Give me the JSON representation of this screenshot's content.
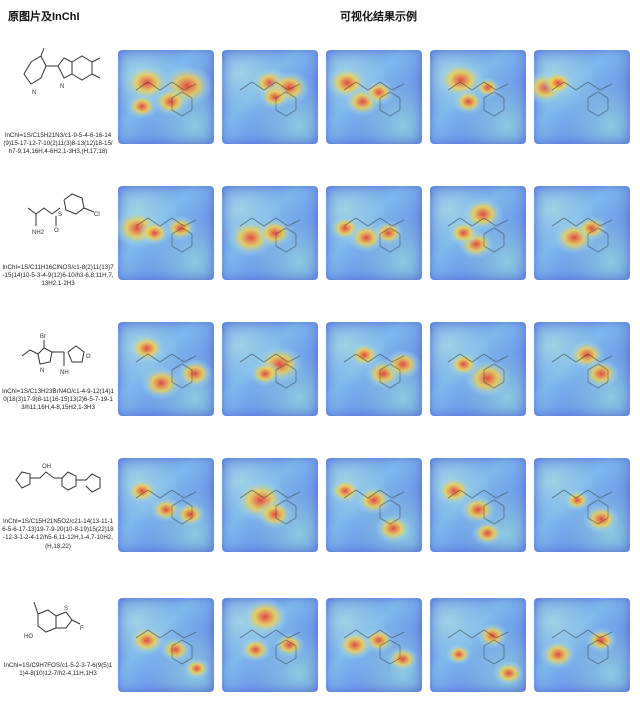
{
  "header": {
    "left_title": "原图片及InChI",
    "right_title": "可视化结果示例"
  },
  "rows": [
    {
      "inchi": "InChI=1S/C15H21N3/c1-9-5-4-6-16-14(9)15-17-12-7-10(2)11(3)8-13(12)18-15/h7-9,14,16H,4-6H2,1-3H3,(H,17,18)",
      "molecule": "methyl-piperidinyl dimethyl benzimidazole",
      "labels": [
        "N",
        "H",
        "N",
        "H"
      ]
    },
    {
      "inchi": "InChI=1S/C11H16ClNOS/c1-8(2)11(13)7-15(14)10-5-3-4-9(12)6-10/h3-6,8,11H,7,13H2,1-2H3",
      "molecule": "chlorophenyl sulfinyl amine",
      "labels": [
        "NH2",
        "S",
        "O",
        "Cl"
      ]
    },
    {
      "inchi": "InChI=1S/C13H23BrN4O/c1-4-9-12(14)10(18(3)17-9)8-11(16-15)13(2)6-5-7-19-13/h11,16H,4-8,15H2,1-3H3",
      "molecule": "bromo pyrazole oxolane hydrazine",
      "labels": [
        "Br",
        "N",
        "N",
        "O",
        "NH",
        "NH2"
      ]
    },
    {
      "inchi": "InChI=1S/C15H21N5O2/c21-14(13-11-16-5-6-17-13)19-7-9-20(10-8-19)15(22)18-12-3-1-2-4-12/h5-6,11-12H,1-4,7-10H2,(H,18,22)",
      "molecule": "cyclopentyl urea piperazine pyrazine",
      "labels": [
        "OH",
        "N",
        "N",
        "O",
        "N"
      ]
    },
    {
      "inchi": "InChI=1S/C9H7FOS/c1-5-2-3-7-6(9(5)11)4-8(10)12-7/h2-4,11H,1H3",
      "molecule": "fluoro benzothiophene ol",
      "labels": [
        "HO",
        "S",
        "F"
      ]
    }
  ],
  "colors": {
    "heat_low": "#5f87e6",
    "heat_mid": "#9fd3e6",
    "heat_high": "#e8413a",
    "heat_warm": "#f6d24a"
  },
  "hotspots": [
    [
      [
        [
          0.3,
          0.35,
          0.45
        ],
        [
          0.72,
          0.38,
          0.5
        ],
        [
          0.55,
          0.55,
          0.35
        ],
        [
          0.25,
          0.6,
          0.3
        ]
      ],
      [
        [
          0.5,
          0.35,
          0.35
        ],
        [
          0.7,
          0.4,
          0.4
        ],
        [
          0.55,
          0.5,
          0.3
        ]
      ],
      [
        [
          0.22,
          0.35,
          0.4
        ],
        [
          0.38,
          0.55,
          0.35
        ],
        [
          0.55,
          0.45,
          0.3
        ]
      ],
      [
        [
          0.32,
          0.32,
          0.45
        ],
        [
          0.4,
          0.55,
          0.3
        ],
        [
          0.6,
          0.4,
          0.25
        ]
      ],
      [
        [
          0.12,
          0.4,
          0.4
        ],
        [
          0.25,
          0.35,
          0.3
        ]
      ]
    ],
    [
      [
        [
          0.2,
          0.45,
          0.45
        ],
        [
          0.38,
          0.5,
          0.3
        ],
        [
          0.65,
          0.45,
          0.3
        ]
      ],
      [
        [
          0.3,
          0.55,
          0.45
        ],
        [
          0.55,
          0.5,
          0.35
        ]
      ],
      [
        [
          0.2,
          0.45,
          0.3
        ],
        [
          0.42,
          0.55,
          0.35
        ],
        [
          0.65,
          0.5,
          0.3
        ]
      ],
      [
        [
          0.55,
          0.3,
          0.4
        ],
        [
          0.48,
          0.62,
          0.35
        ],
        [
          0.35,
          0.5,
          0.3
        ]
      ],
      [
        [
          0.42,
          0.55,
          0.4
        ],
        [
          0.6,
          0.45,
          0.3
        ]
      ]
    ],
    [
      [
        [
          0.3,
          0.28,
          0.35
        ],
        [
          0.45,
          0.65,
          0.4
        ],
        [
          0.8,
          0.55,
          0.35
        ]
      ],
      [
        [
          0.6,
          0.45,
          0.45
        ],
        [
          0.45,
          0.55,
          0.3
        ]
      ],
      [
        [
          0.4,
          0.35,
          0.3
        ],
        [
          0.6,
          0.55,
          0.35
        ],
        [
          0.8,
          0.45,
          0.35
        ]
      ],
      [
        [
          0.6,
          0.6,
          0.45
        ],
        [
          0.35,
          0.45,
          0.3
        ]
      ],
      [
        [
          0.55,
          0.35,
          0.35
        ],
        [
          0.7,
          0.55,
          0.35
        ]
      ]
    ],
    [
      [
        [
          0.25,
          0.35,
          0.3
        ],
        [
          0.5,
          0.55,
          0.3
        ],
        [
          0.75,
          0.6,
          0.3
        ]
      ],
      [
        [
          0.4,
          0.45,
          0.5
        ],
        [
          0.55,
          0.6,
          0.35
        ]
      ],
      [
        [
          0.2,
          0.35,
          0.3
        ],
        [
          0.5,
          0.45,
          0.35
        ],
        [
          0.7,
          0.75,
          0.35
        ]
      ],
      [
        [
          0.25,
          0.35,
          0.35
        ],
        [
          0.5,
          0.55,
          0.35
        ],
        [
          0.6,
          0.8,
          0.3
        ]
      ],
      [
        [
          0.7,
          0.65,
          0.35
        ],
        [
          0.45,
          0.45,
          0.25
        ]
      ]
    ],
    [
      [
        [
          0.3,
          0.45,
          0.35
        ],
        [
          0.6,
          0.55,
          0.3
        ],
        [
          0.82,
          0.75,
          0.25
        ]
      ],
      [
        [
          0.45,
          0.2,
          0.45
        ],
        [
          0.35,
          0.55,
          0.3
        ],
        [
          0.7,
          0.5,
          0.3
        ]
      ],
      [
        [
          0.3,
          0.5,
          0.35
        ],
        [
          0.55,
          0.45,
          0.3
        ],
        [
          0.8,
          0.65,
          0.3
        ]
      ],
      [
        [
          0.65,
          0.4,
          0.3
        ],
        [
          0.82,
          0.8,
          0.3
        ],
        [
          0.3,
          0.6,
          0.25
        ]
      ],
      [
        [
          0.25,
          0.6,
          0.35
        ],
        [
          0.7,
          0.45,
          0.3
        ]
      ]
    ]
  ]
}
